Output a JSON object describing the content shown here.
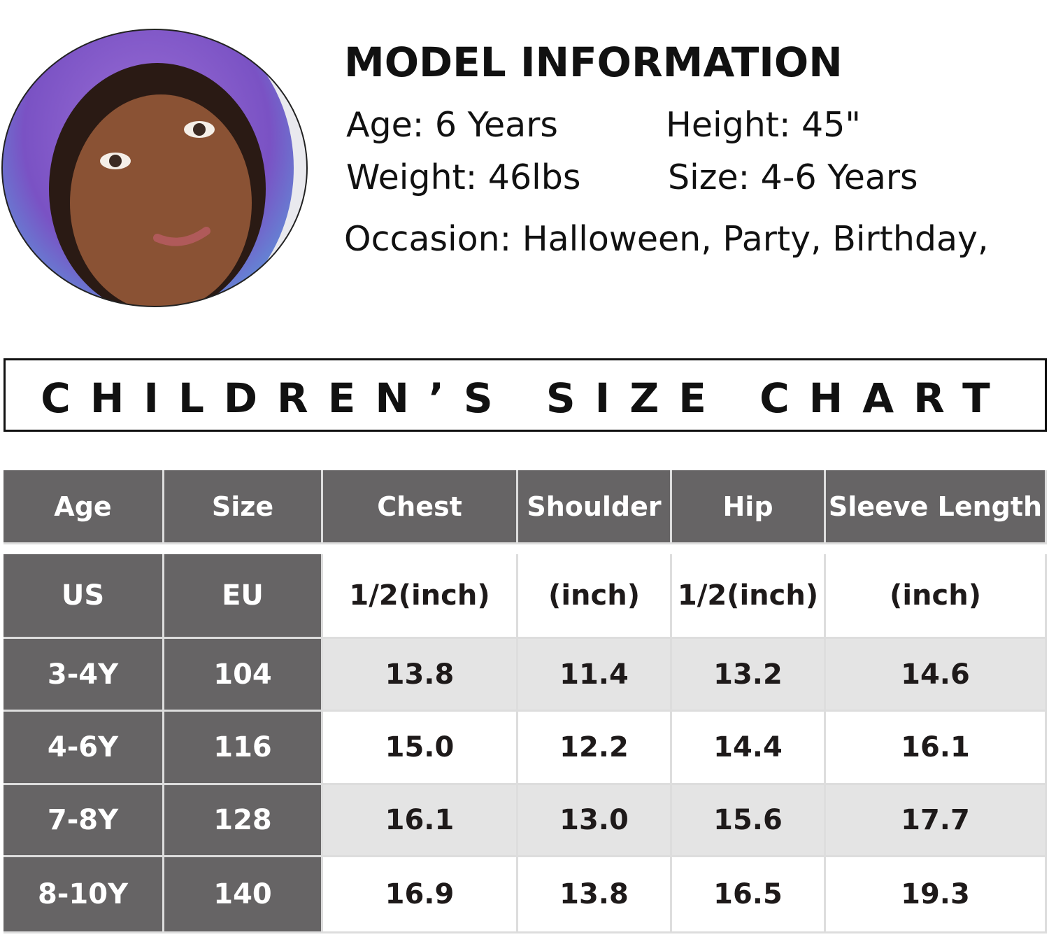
{
  "model": {
    "title": "MODEL INFORMATION",
    "lines": [
      [
        "Age: 6 Years",
        "Height: 45\""
      ],
      [
        "Weight: 46lbs",
        "Size: 4-6 Years"
      ],
      [
        "Occasion: Halloween, Party, Birthday,"
      ]
    ]
  },
  "size_chart": {
    "title": "CHILDREN’S SIZE CHART",
    "header": [
      "Age",
      "Size",
      "Chest",
      "Shoulder",
      "Hip",
      "Sleeve Length"
    ],
    "units": [
      "US",
      "EU",
      "1/2(inch)",
      "(inch)",
      "1/2(inch)",
      "(inch)"
    ],
    "rows": [
      [
        "3-4Y",
        "104",
        "13.8",
        "11.4",
        "13.2",
        "14.6"
      ],
      [
        "4-6Y",
        "116",
        "15.0",
        "12.2",
        "14.4",
        "16.1"
      ],
      [
        "7-8Y",
        "128",
        "16.1",
        "13.0",
        "15.6",
        "17.7"
      ],
      [
        "8-10Y",
        "140",
        "16.9",
        "13.8",
        "16.5",
        "19.3"
      ]
    ]
  }
}
